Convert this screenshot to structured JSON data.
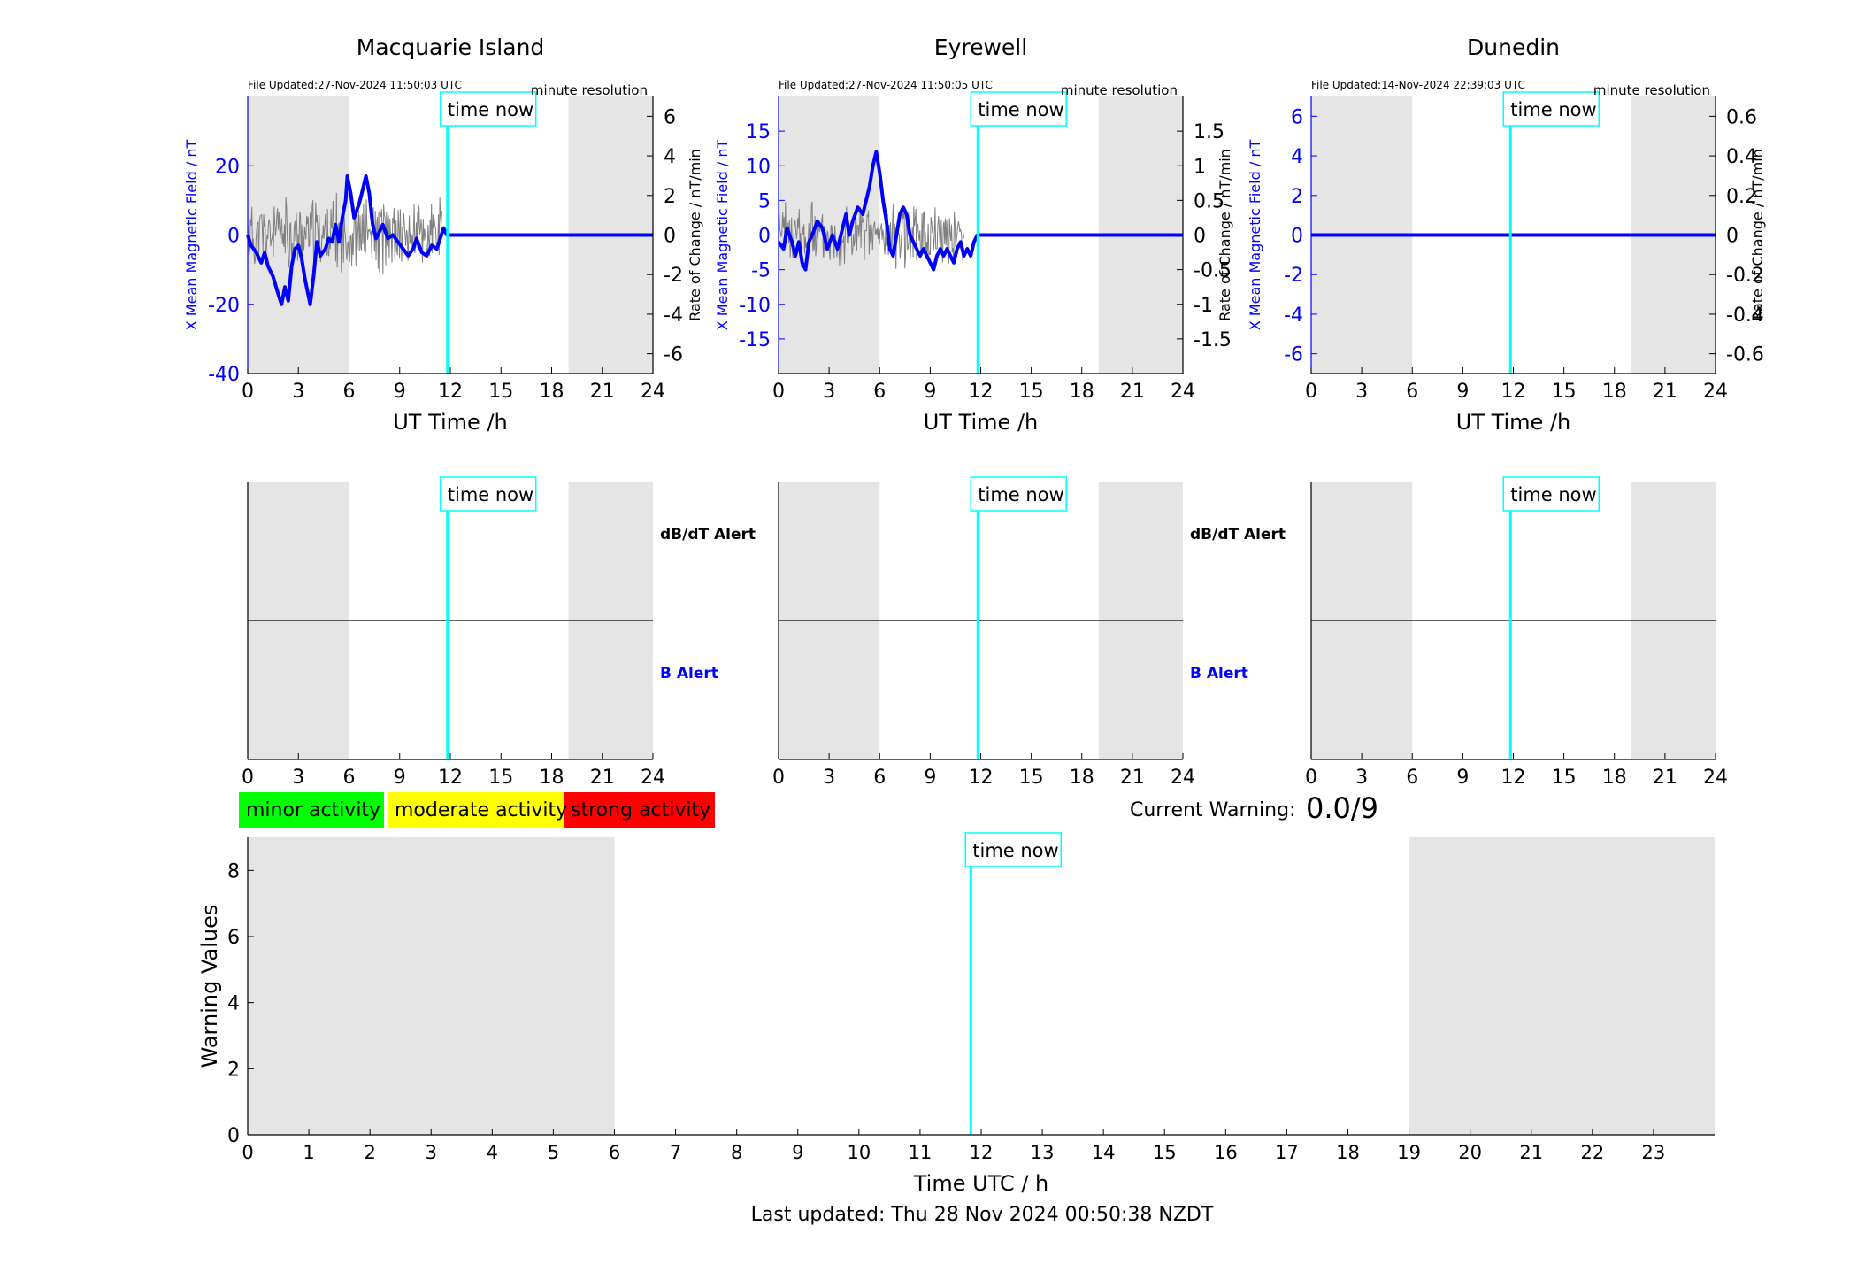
{
  "footer": {
    "last_updated": "Last updated: Thu 28 Nov 2024 00:50:38 NZDT"
  },
  "legend": {
    "minor": "minor activity",
    "moderate": "moderate activity",
    "strong": "strong activity"
  },
  "current_warning": {
    "label": "Current Warning:",
    "value": "0.0/9"
  },
  "time_now_label": "time now",
  "time_now_hour": 11.83,
  "night_shading": [
    [
      0,
      6
    ],
    [
      19,
      24
    ]
  ],
  "colors": {
    "shade": "#e5e5e5",
    "now_line": "#00ffff",
    "field": "#0000ff",
    "rate": "#808080",
    "minor": "#00ff00",
    "moderate": "#ffff00",
    "strong": "#ff0000"
  },
  "chart_data": [
    {
      "type": "line",
      "title": "Macquarie Island",
      "file_updated": "File Updated:27-Nov-2024 11:50:03 UTC",
      "resolution": "minute resolution",
      "xlabel": "UT Time /h",
      "ylabel": "X Mean Magnetic Field / nT",
      "ylabel_right": "Rate of Change / nT/min",
      "xlim": [
        0,
        24
      ],
      "xticks": [
        "0",
        "3",
        "6",
        "9",
        "12",
        "15",
        "18",
        "21",
        "24"
      ],
      "ylim": [
        -40,
        40
      ],
      "yticks": [
        "-40",
        "-20",
        "0",
        "20"
      ],
      "y2lim": [
        -7,
        7
      ],
      "y2ticks": [
        "-6",
        "-4",
        "-2",
        "0",
        "2",
        "4",
        "6"
      ],
      "series": [
        {
          "axis": "left",
          "style": "field",
          "points": [
            [
              0,
              0
            ],
            [
              0.2,
              -3
            ],
            [
              0.5,
              -5
            ],
            [
              0.8,
              -8
            ],
            [
              1.0,
              -5
            ],
            [
              1.2,
              -9
            ],
            [
              1.5,
              -12
            ],
            [
              1.8,
              -17
            ],
            [
              2.0,
              -20
            ],
            [
              2.2,
              -15
            ],
            [
              2.4,
              -19
            ],
            [
              2.6,
              -9
            ],
            [
              2.8,
              -4
            ],
            [
              3.0,
              -3
            ],
            [
              3.2,
              -7
            ],
            [
              3.4,
              -13
            ],
            [
              3.7,
              -20
            ],
            [
              3.9,
              -12
            ],
            [
              4.1,
              -2
            ],
            [
              4.3,
              -6
            ],
            [
              4.6,
              -4
            ],
            [
              4.8,
              -1
            ],
            [
              5.0,
              -2
            ],
            [
              5.2,
              3
            ],
            [
              5.4,
              -2
            ],
            [
              5.6,
              5
            ],
            [
              5.8,
              10
            ],
            [
              5.9,
              17
            ],
            [
              6.1,
              12
            ],
            [
              6.3,
              5
            ],
            [
              6.6,
              9
            ],
            [
              6.8,
              13
            ],
            [
              7.0,
              17
            ],
            [
              7.2,
              12
            ],
            [
              7.4,
              3
            ],
            [
              7.6,
              -1
            ],
            [
              7.8,
              1
            ],
            [
              8.0,
              3
            ],
            [
              8.3,
              -1
            ],
            [
              8.6,
              0
            ],
            [
              8.9,
              -2
            ],
            [
              9.2,
              -4
            ],
            [
              9.5,
              -6
            ],
            [
              9.8,
              -4
            ],
            [
              10.0,
              -1
            ],
            [
              10.3,
              -5
            ],
            [
              10.6,
              -6
            ],
            [
              10.9,
              -3
            ],
            [
              11.2,
              -4
            ],
            [
              11.4,
              -1
            ],
            [
              11.6,
              2
            ],
            [
              11.8,
              0
            ],
            [
              12,
              0
            ],
            [
              24,
              0
            ]
          ]
        },
        {
          "axis": "right",
          "style": "rate",
          "xrange": [
            0,
            11.5
          ],
          "samples": 280,
          "seed": 11,
          "amplitude": 2.2
        }
      ]
    },
    {
      "type": "line",
      "title": "Eyrewell",
      "file_updated": "File Updated:27-Nov-2024 11:50:05 UTC",
      "resolution": "minute resolution",
      "xlabel": "UT Time /h",
      "ylabel": "X Mean Magnetic Field / nT",
      "ylabel_right": "Rate of Change / nT/min",
      "xlim": [
        0,
        24
      ],
      "xticks": [
        "0",
        "3",
        "6",
        "9",
        "12",
        "15",
        "18",
        "21",
        "24"
      ],
      "ylim": [
        -20,
        20
      ],
      "yticks": [
        "-15",
        "-10",
        "-5",
        "0",
        "5",
        "10",
        "15"
      ],
      "y2lim": [
        -2,
        2
      ],
      "y2ticks": [
        "-1.5",
        "-1",
        "-0.5",
        "0",
        "0.5",
        "1",
        "1.5"
      ],
      "series": [
        {
          "axis": "left",
          "style": "field",
          "points": [
            [
              0,
              -1
            ],
            [
              0.3,
              -2
            ],
            [
              0.5,
              1
            ],
            [
              0.8,
              -1
            ],
            [
              1.0,
              -3
            ],
            [
              1.2,
              -1
            ],
            [
              1.4,
              -4
            ],
            [
              1.6,
              -5
            ],
            [
              1.8,
              -1
            ],
            [
              2.0,
              0
            ],
            [
              2.3,
              2
            ],
            [
              2.6,
              1
            ],
            [
              2.9,
              -2
            ],
            [
              3.2,
              0
            ],
            [
              3.5,
              -2
            ],
            [
              3.8,
              1
            ],
            [
              4.0,
              3
            ],
            [
              4.2,
              0
            ],
            [
              4.4,
              2
            ],
            [
              4.7,
              4
            ],
            [
              5.0,
              3
            ],
            [
              5.2,
              5
            ],
            [
              5.4,
              7
            ],
            [
              5.6,
              10
            ],
            [
              5.8,
              12
            ],
            [
              6.0,
              9
            ],
            [
              6.2,
              5
            ],
            [
              6.4,
              2
            ],
            [
              6.6,
              -2
            ],
            [
              6.8,
              -3
            ],
            [
              7.0,
              0
            ],
            [
              7.2,
              3
            ],
            [
              7.4,
              4
            ],
            [
              7.6,
              3
            ],
            [
              7.8,
              0
            ],
            [
              8.0,
              -1
            ],
            [
              8.2,
              -2
            ],
            [
              8.4,
              -3
            ],
            [
              8.6,
              -2
            ],
            [
              8.8,
              -3
            ],
            [
              9.0,
              -4
            ],
            [
              9.2,
              -5
            ],
            [
              9.4,
              -3
            ],
            [
              9.6,
              -2
            ],
            [
              9.8,
              -3
            ],
            [
              10.0,
              -2
            ],
            [
              10.2,
              -3
            ],
            [
              10.4,
              -4
            ],
            [
              10.6,
              -2
            ],
            [
              10.8,
              -1
            ],
            [
              11.0,
              -3
            ],
            [
              11.2,
              -2
            ],
            [
              11.4,
              -3
            ],
            [
              11.6,
              -1
            ],
            [
              11.8,
              0
            ],
            [
              12,
              0
            ],
            [
              24,
              0
            ]
          ]
        },
        {
          "axis": "right",
          "style": "rate",
          "xrange": [
            0,
            11.0
          ],
          "samples": 270,
          "seed": 23,
          "amplitude": 0.55
        }
      ]
    },
    {
      "type": "line",
      "title": "Dunedin",
      "file_updated": "File Updated:14-Nov-2024 22:39:03 UTC",
      "resolution": "minute resolution",
      "xlabel": "UT Time /h",
      "ylabel": "X Mean Magnetic Field / nT",
      "ylabel_right": "Rate of Change / nT/min",
      "xlim": [
        0,
        24
      ],
      "xticks": [
        "0",
        "3",
        "6",
        "9",
        "12",
        "15",
        "18",
        "21",
        "24"
      ],
      "ylim": [
        -7,
        7
      ],
      "yticks": [
        "-6",
        "-4",
        "-2",
        "0",
        "2",
        "4",
        "6"
      ],
      "y2lim": [
        -0.7,
        0.7
      ],
      "y2ticks": [
        "-0.6",
        "-0.4",
        "-0.2",
        "0",
        "0.2",
        "0.4",
        "0.6"
      ],
      "series": [
        {
          "axis": "left",
          "style": "field",
          "points": [
            [
              0,
              0
            ],
            [
              24,
              0
            ]
          ]
        }
      ]
    },
    {
      "type": "line",
      "title": "",
      "alert_labels": {
        "top": "dB/dT Alert",
        "bottom": "B Alert"
      },
      "xlim": [
        0,
        24
      ],
      "xticks": [
        "0",
        "3",
        "6",
        "9",
        "12",
        "15",
        "18",
        "21",
        "24"
      ],
      "ylim": [
        0,
        2
      ],
      "series": [
        {
          "style": "divider",
          "points": [
            [
              0,
              1
            ],
            [
              24,
              1
            ]
          ]
        }
      ]
    },
    {
      "type": "line",
      "title": "",
      "alert_labels": {
        "top": "dB/dT Alert",
        "bottom": "B Alert"
      },
      "xlim": [
        0,
        24
      ],
      "xticks": [
        "0",
        "3",
        "6",
        "9",
        "12",
        "15",
        "18",
        "21",
        "24"
      ],
      "ylim": [
        0,
        2
      ],
      "series": [
        {
          "style": "divider",
          "points": [
            [
              0,
              1
            ],
            [
              24,
              1
            ]
          ]
        }
      ]
    },
    {
      "type": "line",
      "title": "",
      "xlim": [
        0,
        24
      ],
      "xticks": [
        "0",
        "3",
        "6",
        "9",
        "12",
        "15",
        "18",
        "21",
        "24"
      ],
      "ylim": [
        0,
        2
      ],
      "series": [
        {
          "style": "divider",
          "points": [
            [
              0,
              1
            ],
            [
              24,
              1
            ]
          ]
        }
      ]
    },
    {
      "type": "bar",
      "title": "",
      "xlabel": "Time UTC / h",
      "ylabel": "Warning Values",
      "xlim": [
        0,
        24
      ],
      "xticks": [
        "0",
        "1",
        "2",
        "3",
        "4",
        "5",
        "6",
        "7",
        "8",
        "9",
        "10",
        "11",
        "12",
        "13",
        "14",
        "15",
        "16",
        "17",
        "18",
        "19",
        "20",
        "21",
        "22",
        "23"
      ],
      "ylim": [
        0,
        9
      ],
      "yticks": [
        "0",
        "2",
        "4",
        "6",
        "8"
      ],
      "series": []
    }
  ]
}
